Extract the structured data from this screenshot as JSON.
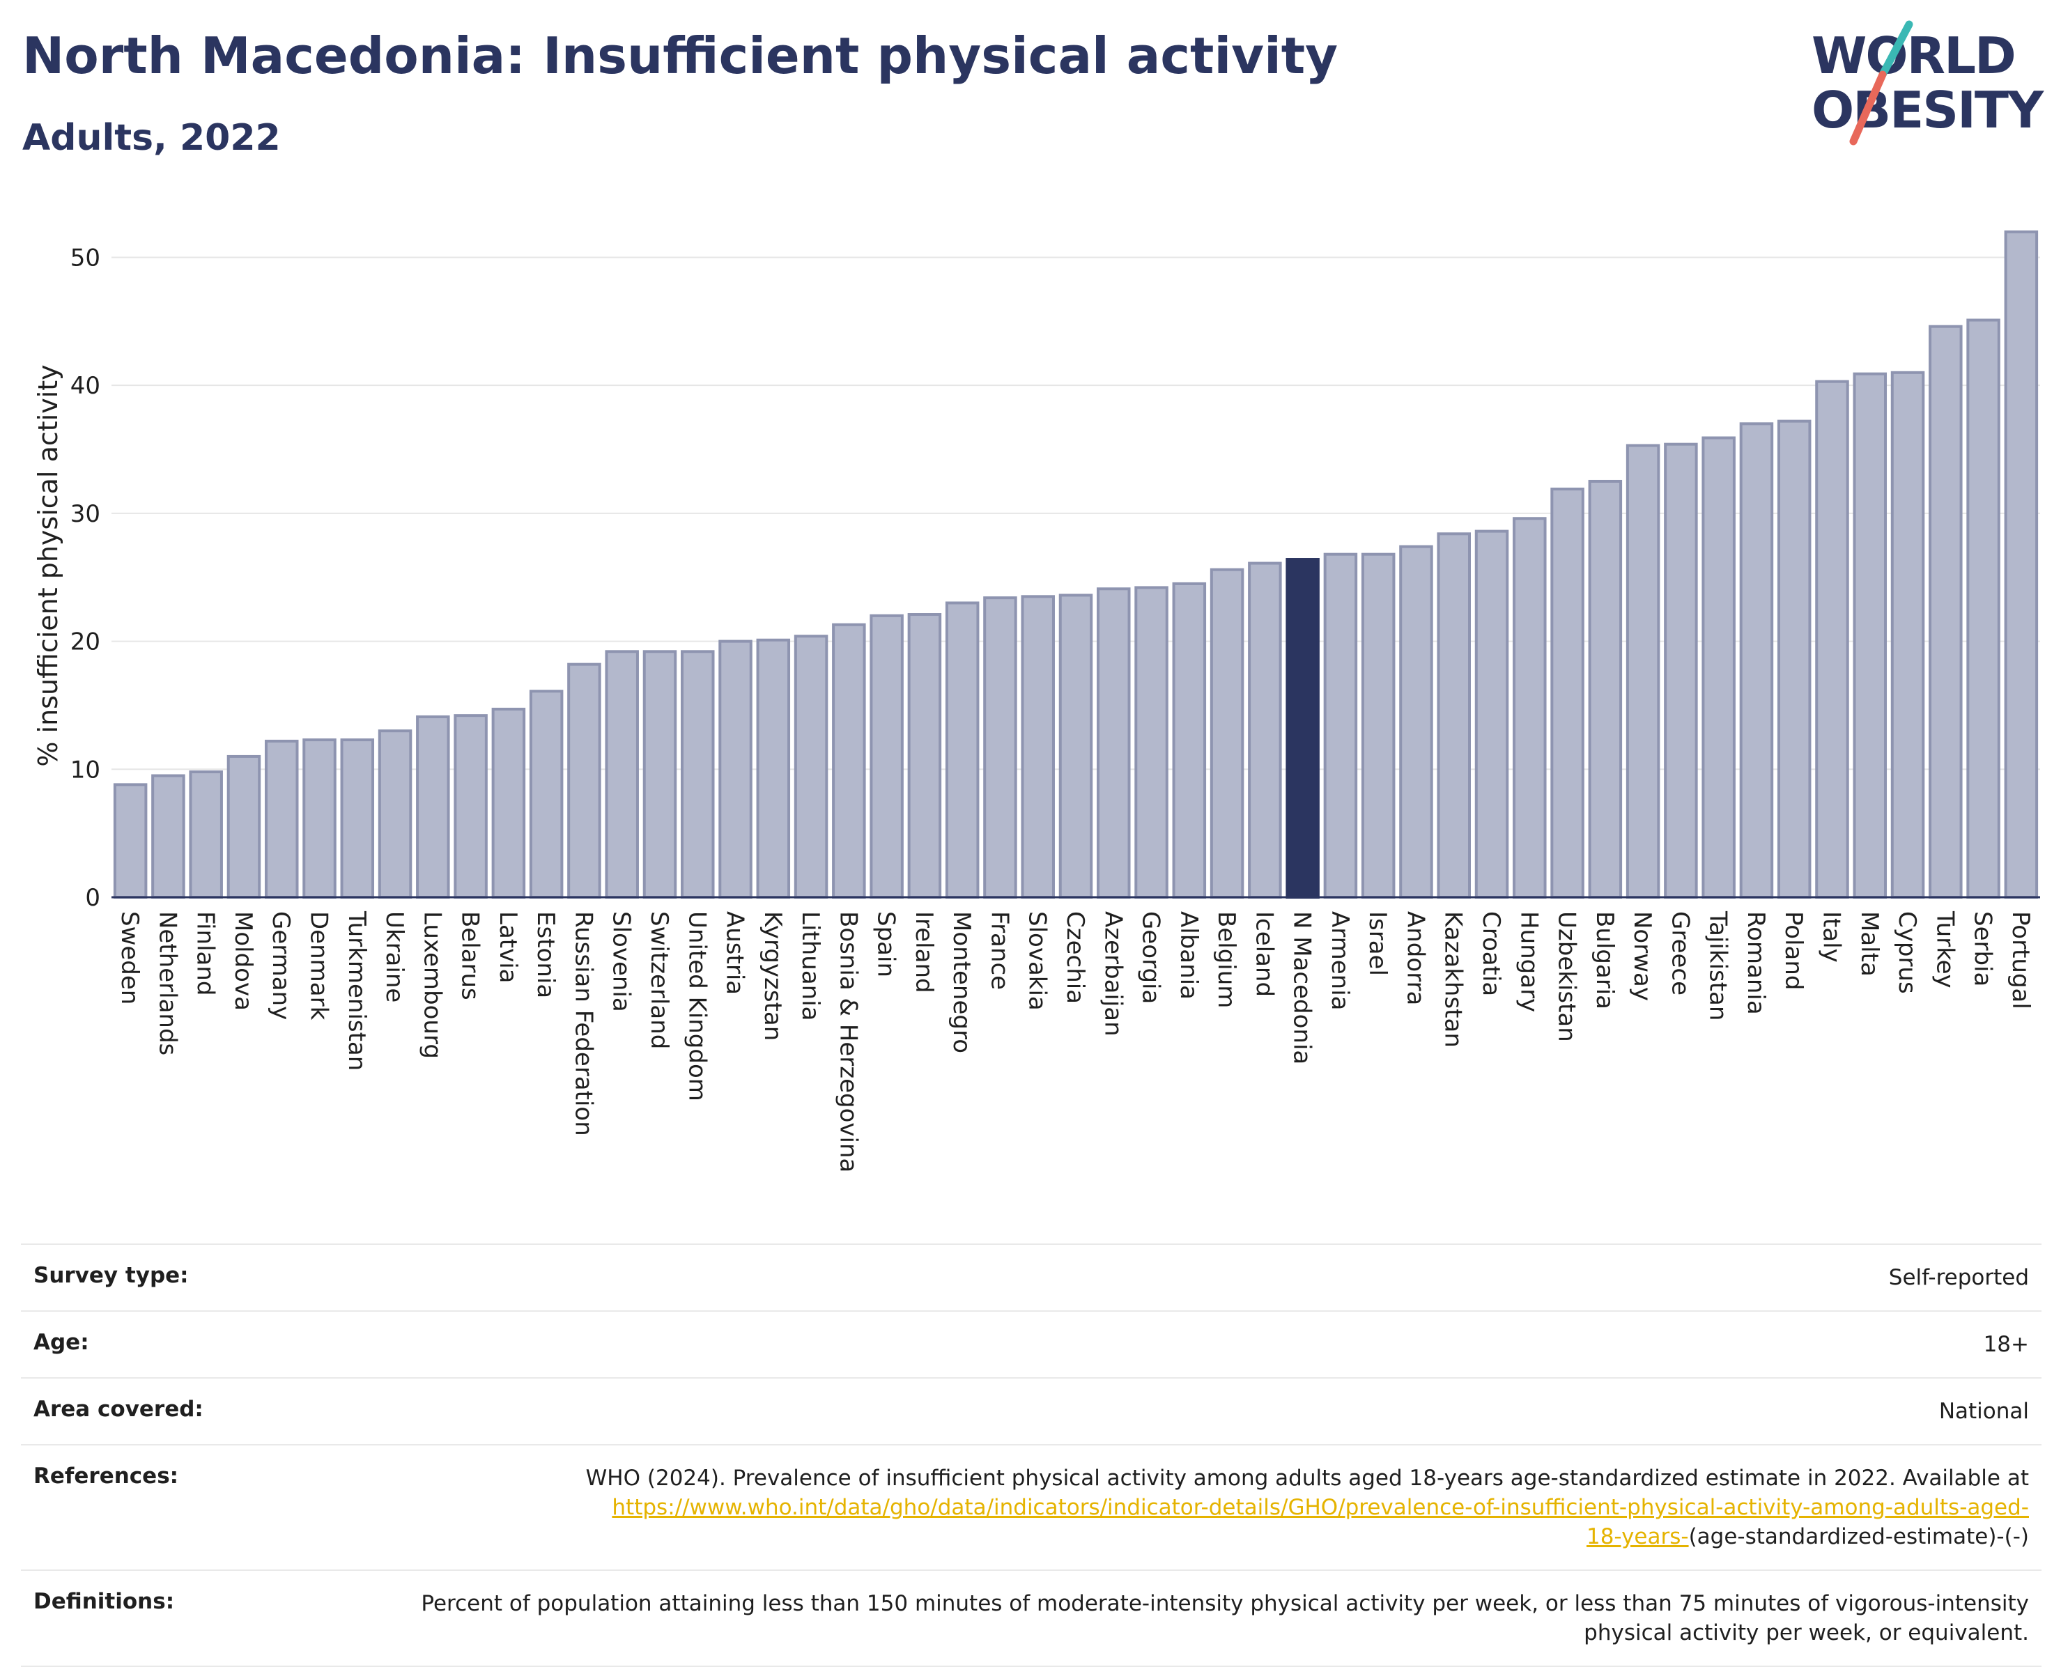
{
  "header": {
    "title": "North Macedonia: Insufficient physical activity",
    "subtitle": "Adults, 2022",
    "logo_line1": "WORLD",
    "logo_line2": "OBESITY"
  },
  "colors": {
    "bar": "#b3b8cc",
    "bar_stroke": "#8e94b0",
    "highlight": "#2b3560",
    "grid": "#e6e6e6"
  },
  "chart_data": {
    "type": "bar",
    "title": "",
    "xlabel": "",
    "ylabel": "% insufficient physical activity",
    "ylim": [
      0,
      54
    ],
    "yticks": [
      0,
      10,
      20,
      30,
      40,
      50
    ],
    "grid": "horizontal",
    "highlight": "N Macedonia",
    "categories": [
      "Sweden",
      "Netherlands",
      "Finland",
      "Moldova",
      "Germany",
      "Denmark",
      "Turkmenistan",
      "Ukraine",
      "Luxembourg",
      "Belarus",
      "Latvia",
      "Estonia",
      "Russian Federation",
      "Slovenia",
      "Switzerland",
      "United Kingdom",
      "Austria",
      "Kyrgyzstan",
      "Lithuania",
      "Bosnia & Herzegovina",
      "Spain",
      "Ireland",
      "Montenegro",
      "France",
      "Slovakia",
      "Czechia",
      "Azerbaijan",
      "Georgia",
      "Albania",
      "Belgium",
      "Iceland",
      "N Macedonia",
      "Armenia",
      "Israel",
      "Andorra",
      "Kazakhstan",
      "Croatia",
      "Hungary",
      "Uzbekistan",
      "Bulgaria",
      "Norway",
      "Greece",
      "Tajikistan",
      "Romania",
      "Poland",
      "Italy",
      "Malta",
      "Cyprus",
      "Turkey",
      "Serbia",
      "Portugal"
    ],
    "values": [
      8.8,
      9.5,
      9.8,
      11.0,
      12.2,
      12.3,
      12.3,
      13.0,
      14.1,
      14.2,
      14.7,
      16.1,
      18.2,
      19.2,
      19.2,
      19.2,
      20.0,
      20.1,
      20.4,
      21.3,
      22.0,
      22.1,
      23.0,
      23.4,
      23.5,
      23.6,
      24.1,
      24.2,
      24.5,
      25.6,
      26.1,
      26.4,
      26.8,
      26.8,
      27.4,
      28.4,
      28.6,
      29.6,
      31.9,
      32.5,
      35.3,
      35.4,
      35.9,
      37.0,
      37.2,
      40.3,
      40.9,
      41.0,
      44.6,
      45.1,
      52.0
    ]
  },
  "info": {
    "survey_type_label": "Survey type:",
    "survey_type_value": "Self-reported",
    "age_label": "Age:",
    "age_value": "18+",
    "area_label": "Area covered:",
    "area_value": "National",
    "references_label": "References:",
    "references_text": "WHO (2024). Prevalence of insufficient physical activity among adults aged 18-years age-standardized estimate in 2022. Available at",
    "references_link_line1": "https://www.who.int/data/gho/data/indicators/indicator-details/GHO/prevalence-of-insufficient-physical-activity-among-adults-aged-",
    "references_link_line2": "18-years-",
    "references_suffix": "(age-standardized-estimate)-(-)",
    "definitions_label": "Definitions:",
    "definitions_text": "Percent of population attaining less than 150 minutes of moderate-intensity physical activity per week, or less than 75 minutes of vigorous-intensity physical activity per week, or equivalent."
  }
}
